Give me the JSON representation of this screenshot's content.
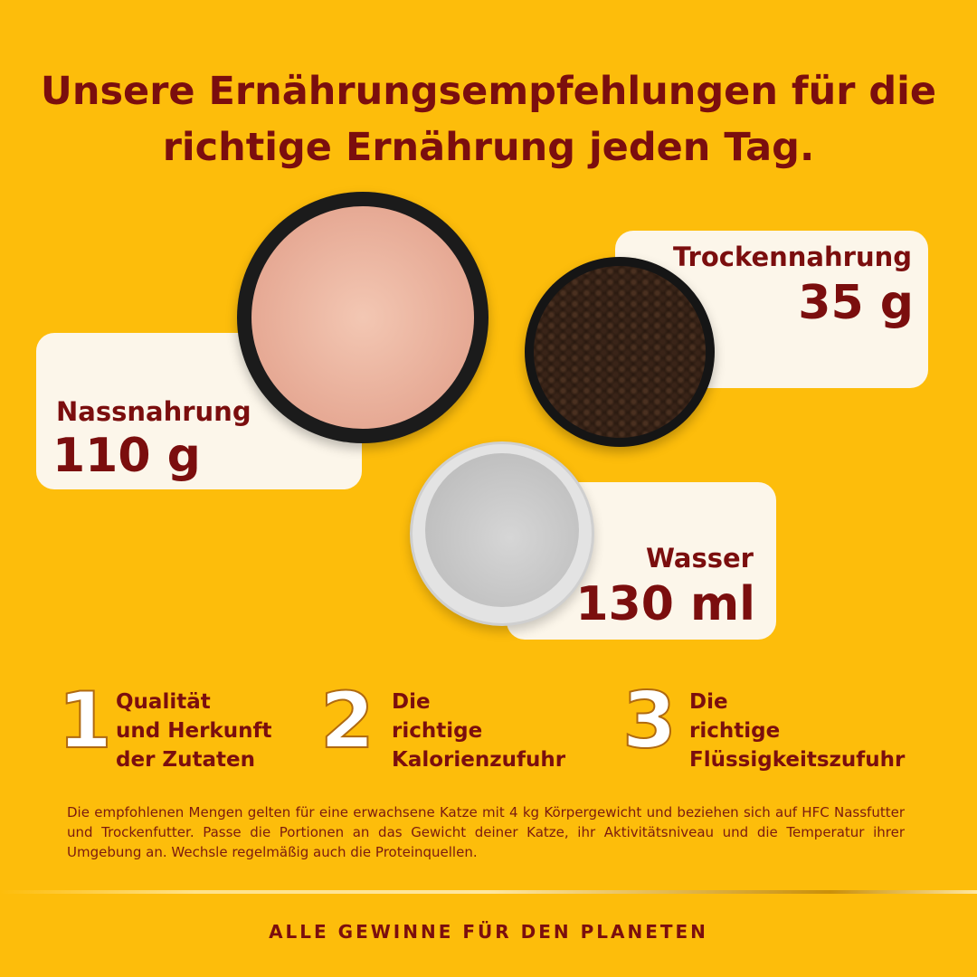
{
  "title": {
    "line1": "Unsere Ernährungsempfehlungen für die",
    "line2": "richtige Ernährung jeden Tag."
  },
  "portions": [
    {
      "label": "Nassnahrung",
      "value": "110 g"
    },
    {
      "label": "Trockennahrung",
      "value": "35 g"
    },
    {
      "label": "Wasser",
      "value": "130 ml"
    }
  ],
  "points": [
    {
      "number": "1",
      "lines": [
        "Qualität",
        "und Herkunft",
        "der Zutaten"
      ]
    },
    {
      "number": "2",
      "lines": [
        "Die",
        "richtige",
        "Kalorienzufuhr"
      ]
    },
    {
      "number": "3",
      "lines": [
        "Die",
        "richtige",
        "Flüssigkeitszufuhr"
      ]
    }
  ],
  "disclaimer": "Die empfohlenen Mengen gelten für eine erwachsene Katze mit 4 kg Körpergewicht und beziehen sich auf HFC Nassfutter und Trockenfutter. Passe die Portionen an das Gewicht deiner Katze, ihr Aktivitätsniveau und die Temperatur ihrer Umgebung an. Wechsle regelmäßig auch die Proteinquellen.",
  "footer": "ALLE GEWINNE FÜR DEN PLANETEN",
  "colors": {
    "background": "#FDBD0B",
    "text": "#7B0E0E",
    "card": "#FCF6EA"
  }
}
